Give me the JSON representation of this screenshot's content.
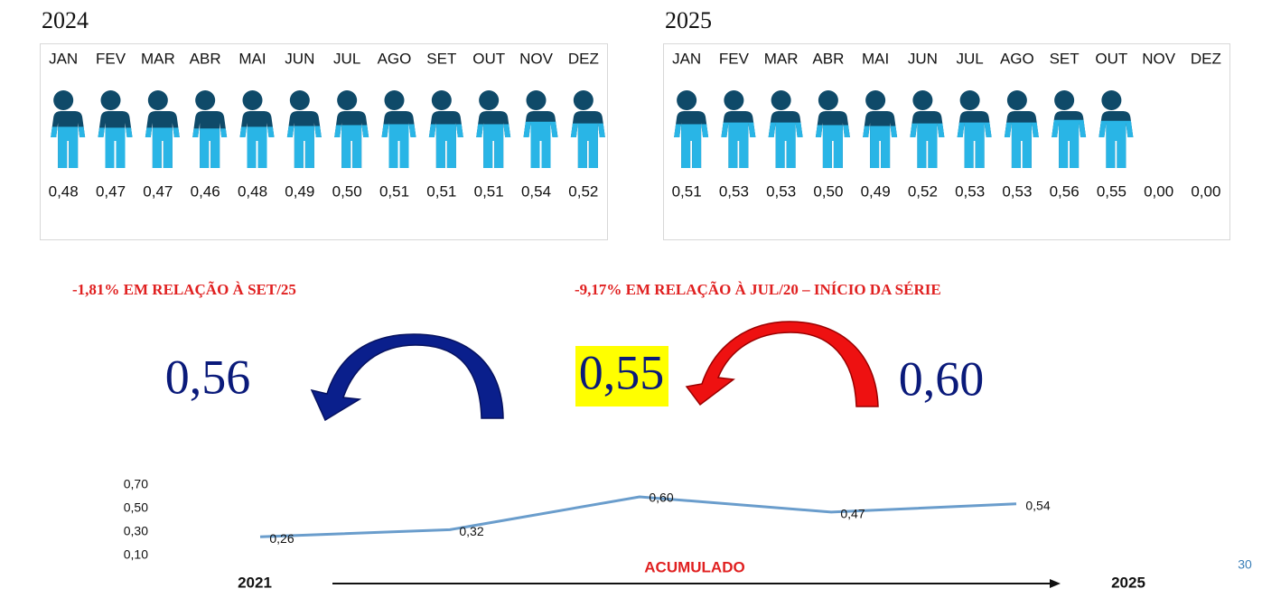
{
  "panels": [
    {
      "title": "2024",
      "months": [
        "JAN",
        "FEV",
        "MAR",
        "ABR",
        "MAI",
        "JUN",
        "JUL",
        "AGO",
        "SET",
        "OUT",
        "NOV",
        "DEZ"
      ],
      "values": [
        0.48,
        0.47,
        0.47,
        0.46,
        0.48,
        0.49,
        0.5,
        0.51,
        0.51,
        0.51,
        0.54,
        0.52
      ],
      "value_labels": [
        "0,48",
        "0,47",
        "0,47",
        "0,46",
        "0,48",
        "0,49",
        "0,50",
        "0,51",
        "0,51",
        "0,51",
        "0,54",
        "0,52"
      ]
    },
    {
      "title": "2025",
      "months": [
        "JAN",
        "FEV",
        "MAR",
        "ABR",
        "MAI",
        "JUN",
        "JUL",
        "AGO",
        "SET",
        "OUT",
        "NOV",
        "DEZ"
      ],
      "values": [
        0.51,
        0.53,
        0.53,
        0.5,
        0.49,
        0.52,
        0.53,
        0.53,
        0.56,
        0.55,
        0.0,
        0.0
      ],
      "value_labels": [
        "0,51",
        "0,53",
        "0,53",
        "0,50",
        "0,49",
        "0,52",
        "0,53",
        "0,53",
        "0,56",
        "0,55",
        "0,00",
        "0,00"
      ]
    }
  ],
  "icon_colors": {
    "dark": "#0f4a69",
    "light": "#29b5e6"
  },
  "left_note": "-1,81% EM RELAÇÃO À SET/25",
  "right_note": "-9,17% EM RELAÇÃO À JUL/20 – INÍCIO DA SÉRIE",
  "big_values": [
    "0,56",
    "0,55",
    "0,60"
  ],
  "chart_data": {
    "type": "line",
    "values": [
      0.26,
      0.32,
      0.6,
      0.47,
      0.54
    ],
    "value_labels": [
      "0,26",
      "0,32",
      "0,60",
      "0,47",
      "0,54"
    ],
    "color": "#6a9dcc",
    "ylim": [
      0.1,
      0.7
    ],
    "yticks": [
      {
        "value": 0.7,
        "label": "0,70"
      },
      {
        "value": 0.5,
        "label": "0,50"
      },
      {
        "value": 0.3,
        "label": "0,30"
      },
      {
        "value": 0.1,
        "label": "0,10"
      }
    ],
    "start_label": "2021",
    "end_label": "2025",
    "axis_label": "ACUMULADO"
  },
  "page_number": "30"
}
